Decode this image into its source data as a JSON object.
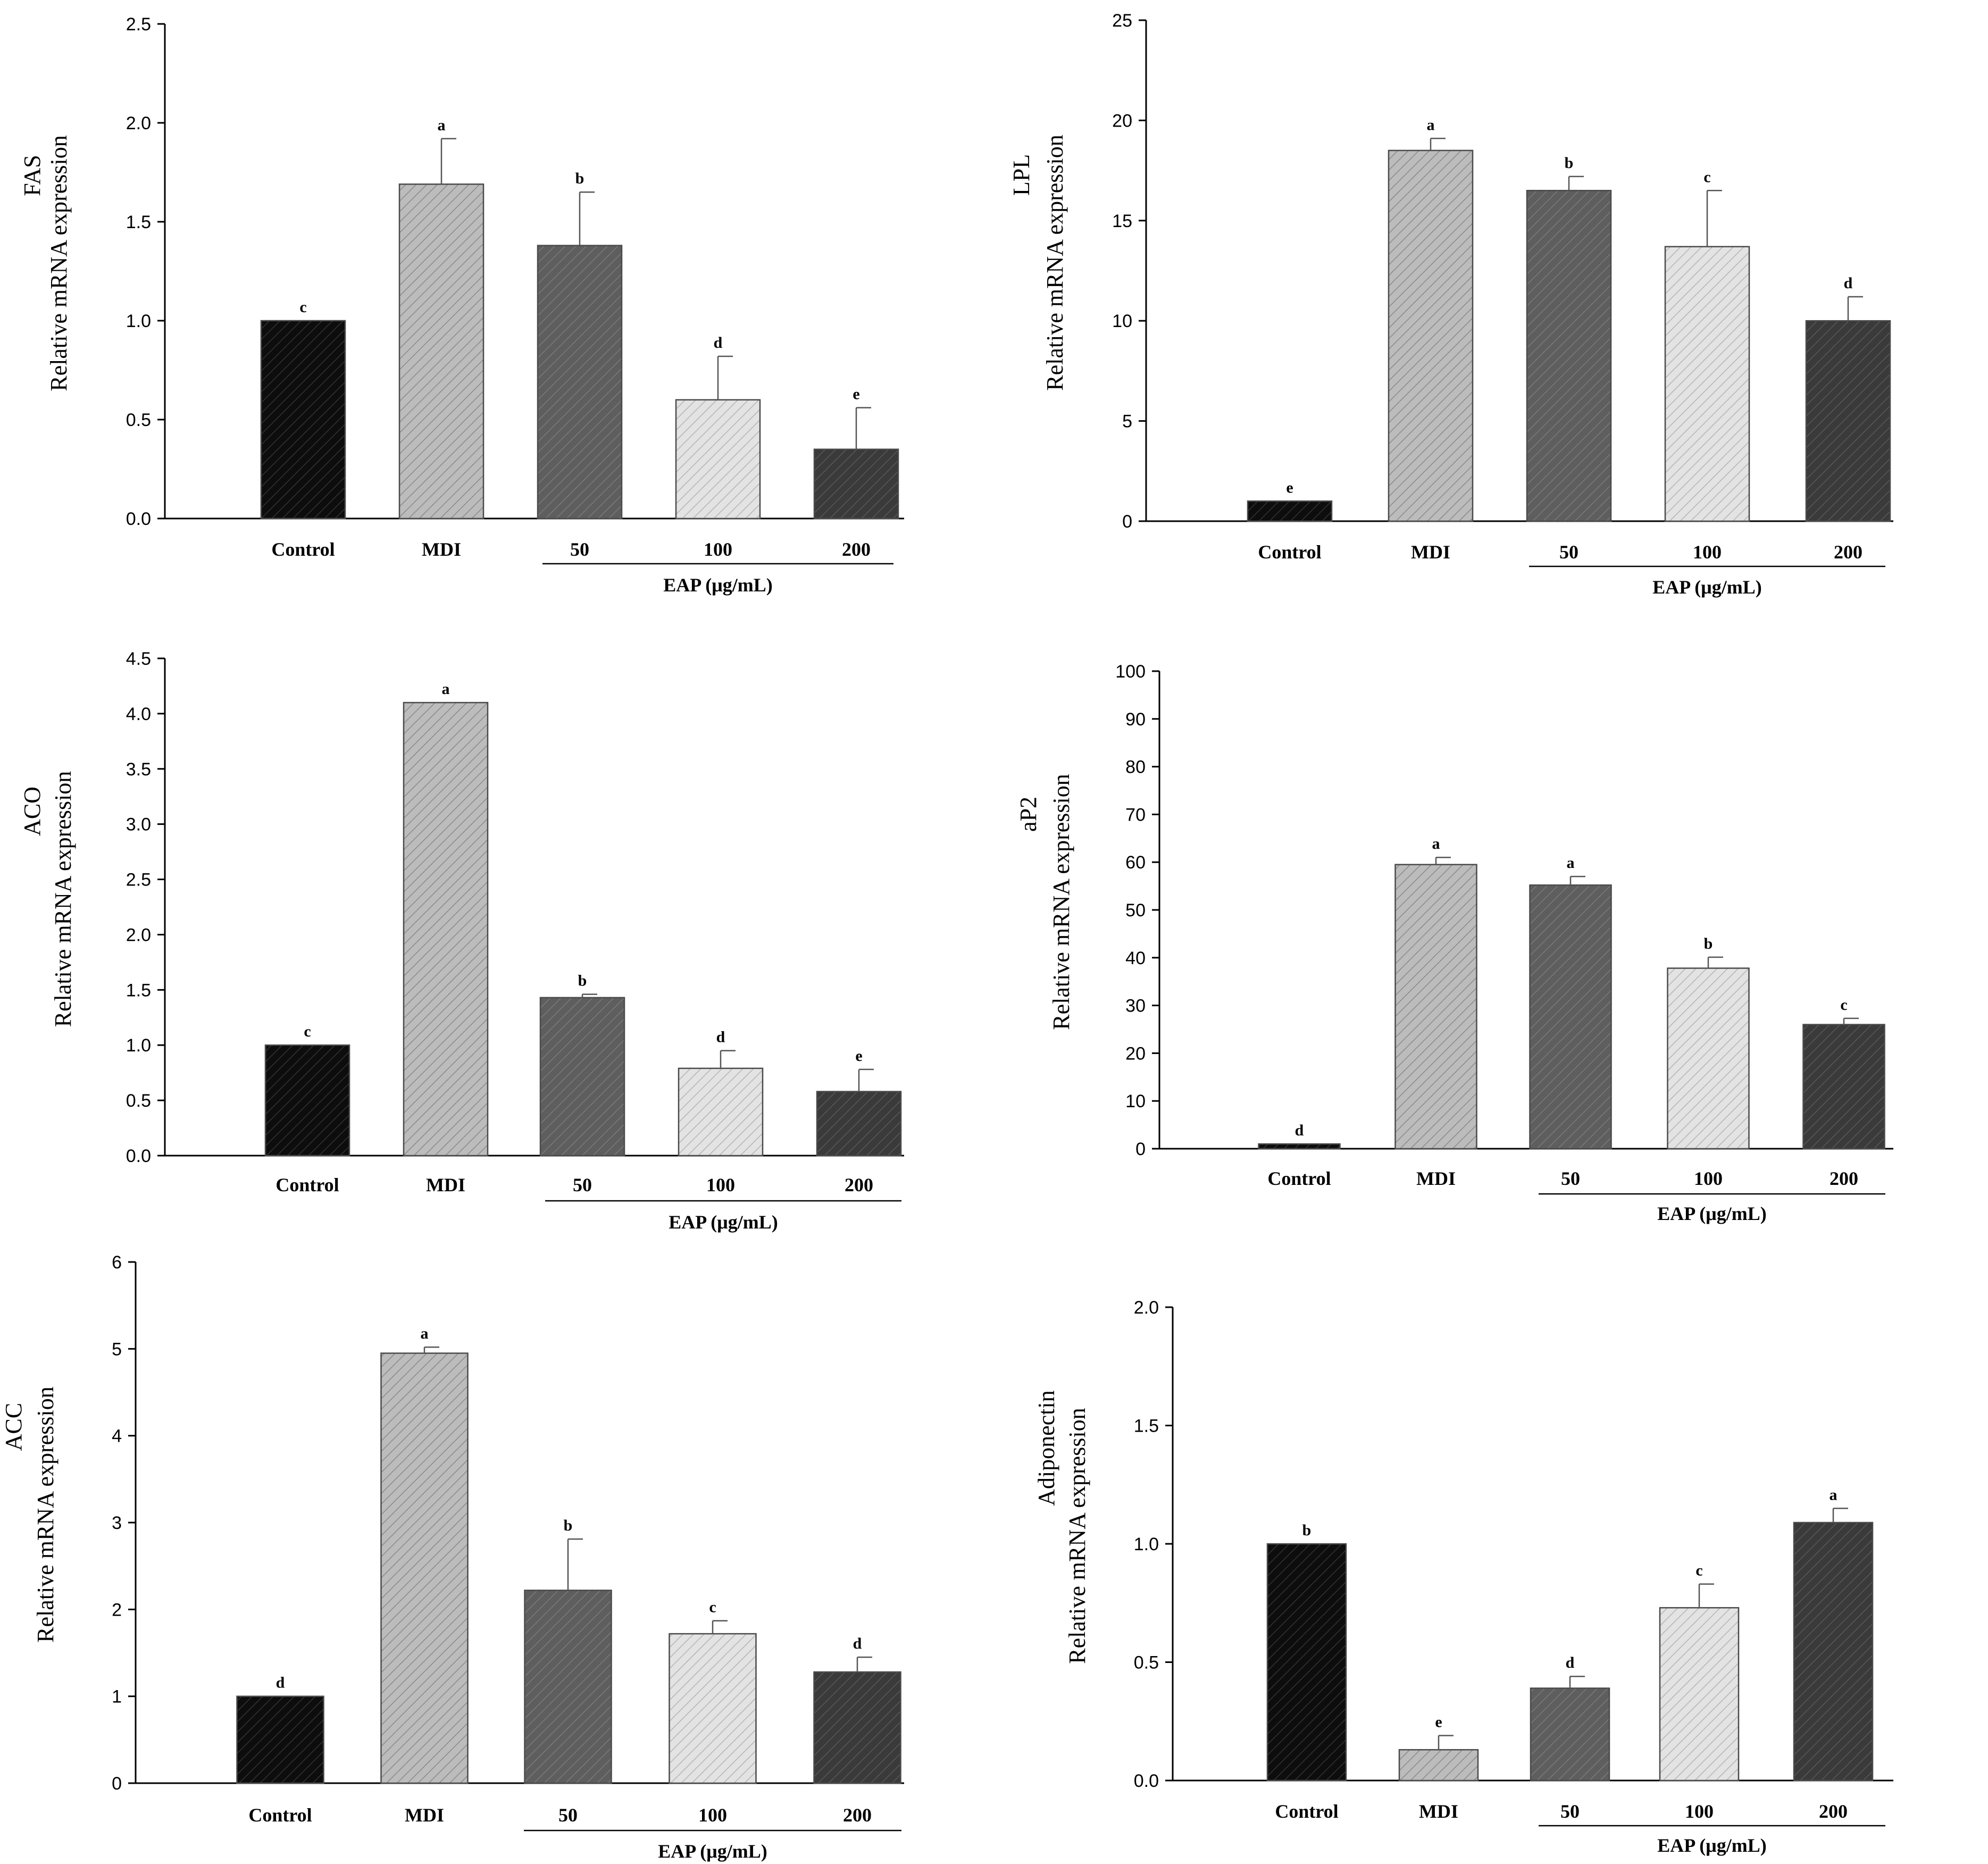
{
  "chart_data": [
    {
      "type": "bar",
      "gene": "FAS",
      "ylabel": "Relative mRNA expression",
      "categories": [
        "Control",
        "MDI",
        "50",
        "100",
        "200"
      ],
      "group_label": "EAP (μg/mL)",
      "values": [
        1.0,
        1.69,
        1.38,
        0.6,
        0.35
      ],
      "errors": [
        0.0,
        0.23,
        0.27,
        0.22,
        0.21
      ],
      "letters": [
        "c",
        "a",
        "b",
        "d",
        "e"
      ],
      "ylim": [
        0,
        2.5
      ],
      "yticks": [
        "0.0",
        "0.5",
        "1.0",
        "1.5",
        "2.0",
        "2.5"
      ],
      "ytick_values": [
        0,
        0.5,
        1.0,
        1.5,
        2.0,
        2.5
      ]
    },
    {
      "type": "bar",
      "gene": "LPL",
      "ylabel": "Relative mRNA expression",
      "categories": [
        "Control",
        "MDI",
        "50",
        "100",
        "200"
      ],
      "group_label": "EAP (μg/mL)",
      "values": [
        1.0,
        18.5,
        16.5,
        13.7,
        10.0
      ],
      "errors": [
        0.0,
        0.6,
        0.7,
        2.8,
        1.2
      ],
      "letters": [
        "e",
        "a",
        "b",
        "c",
        "d"
      ],
      "ylim": [
        0,
        25
      ],
      "yticks": [
        "0",
        "5",
        "10",
        "15",
        "20",
        "25"
      ],
      "ytick_values": [
        0,
        5,
        10,
        15,
        20,
        25
      ]
    },
    {
      "type": "bar",
      "gene": "ACO",
      "ylabel": "Relative mRNA expression",
      "categories": [
        "Control",
        "MDI",
        "50",
        "100",
        "200"
      ],
      "group_label": "EAP (μg/mL)",
      "values": [
        1.0,
        4.1,
        1.43,
        0.79,
        0.58
      ],
      "errors": [
        0.0,
        0.0,
        0.03,
        0.16,
        0.2
      ],
      "letters": [
        "c",
        "a",
        "b",
        "d",
        "e"
      ],
      "ylim": [
        0,
        4.5
      ],
      "yticks": [
        "0.0",
        "0.5",
        "1.0",
        "1.5",
        "2.0",
        "2.5",
        "3.0",
        "3.5",
        "4.0",
        "4.5"
      ],
      "ytick_values": [
        0,
        0.5,
        1.0,
        1.5,
        2.0,
        2.5,
        3.0,
        3.5,
        4.0,
        4.5
      ]
    },
    {
      "type": "bar",
      "gene": "aP2",
      "ylabel": "Relative mRNA expression",
      "categories": [
        "Control",
        "MDI",
        "50",
        "100",
        "200"
      ],
      "group_label": "EAP (μg/mL)",
      "values": [
        1.0,
        59.5,
        55.2,
        37.8,
        26.0
      ],
      "errors": [
        0.0,
        1.5,
        1.8,
        2.3,
        1.3
      ],
      "letters": [
        "d",
        "a",
        "a",
        "b",
        "c"
      ],
      "ylim": [
        0,
        100
      ],
      "yticks": [
        "0",
        "10",
        "20",
        "30",
        "40",
        "50",
        "60",
        "70",
        "80",
        "90",
        "100"
      ],
      "ytick_values": [
        0,
        10,
        20,
        30,
        40,
        50,
        60,
        70,
        80,
        90,
        100
      ]
    },
    {
      "type": "bar",
      "gene": "ACC",
      "ylabel": "Relative mRNA expression",
      "categories": [
        "Control",
        "MDI",
        "50",
        "100",
        "200"
      ],
      "group_label": "EAP (μg/mL)",
      "values": [
        1.0,
        4.95,
        2.22,
        1.72,
        1.28
      ],
      "errors": [
        0.0,
        0.07,
        0.59,
        0.15,
        0.17
      ],
      "letters": [
        "d",
        "a",
        "b",
        "c",
        "d"
      ],
      "ylim": [
        0,
        6
      ],
      "yticks": [
        "0",
        "1",
        "2",
        "3",
        "4",
        "5",
        "6"
      ],
      "ytick_values": [
        0,
        1,
        2,
        3,
        4,
        5,
        6
      ]
    },
    {
      "type": "bar",
      "gene": "Adiponectin",
      "ylabel": "Relative mRNA expression",
      "categories": [
        "Control",
        "MDI",
        "50",
        "100",
        "200"
      ],
      "group_label": "EAP (μg/mL)",
      "values": [
        1.0,
        0.13,
        0.39,
        0.73,
        1.09
      ],
      "errors": [
        0.0,
        0.06,
        0.05,
        0.1,
        0.06
      ],
      "letters": [
        "b",
        "e",
        "d",
        "c",
        "a"
      ],
      "ylim": [
        0,
        2.0
      ],
      "yticks": [
        "0.0",
        "0.5",
        "1.0",
        "1.5",
        "2.0"
      ],
      "ytick_values": [
        0,
        0.5,
        1.0,
        1.5,
        2.0
      ]
    }
  ],
  "colors": {
    "bar_fills": [
      "#0d0d0d",
      "#bcbcbc",
      "#5e5e5e",
      "#e3e3e3",
      "#3a3a3a"
    ],
    "hatch_lines": [
      "#333333",
      "#8a8a8a",
      "#7a7a7a",
      "#b4b4b4",
      "#585858"
    ]
  }
}
